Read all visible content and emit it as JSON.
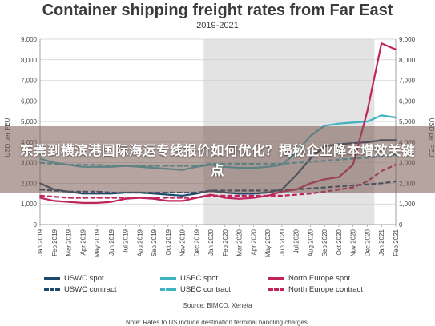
{
  "banner": {
    "text": "东莞到横滨港国际海运专线报价如何优化？揭秘企业降本增效关键点"
  },
  "chart_data": {
    "type": "line",
    "title": "Container shipping freight rates from Far East",
    "subtitle": "2019-2021",
    "ylabel": "USD per FEU",
    "ylim": [
      0,
      9000
    ],
    "yticks": [
      "0",
      "1,000",
      "2,000",
      "3,000",
      "4,000",
      "5,000",
      "6,000",
      "7,000",
      "8,000",
      "9,000"
    ],
    "x": [
      "Jan 2019",
      "Feb 2019",
      "Mar 2019",
      "Apr 2019",
      "May 2019",
      "Jun 2019",
      "Jul 2019",
      "Aug 2019",
      "Sep 2019",
      "Oct 2019",
      "Nov 2019",
      "Dec 2019",
      "Jan 2020",
      "Feb 2020",
      "Mar 2020",
      "Apr 2020",
      "May 2020",
      "Jun 2020",
      "Jul 2020",
      "Aug 2020",
      "Sep 2020",
      "Oct 2020",
      "Nov 2020",
      "Dec 2020",
      "Jan 2021",
      "Feb 2021"
    ],
    "shaded_region": [
      "Jan 2020",
      "Dec 2020"
    ],
    "colors": {
      "uswc": "#1e4a6e",
      "usec": "#3fb3c0",
      "north_europe": "#c0245c",
      "shade": "#e3e3e3"
    },
    "series": [
      {
        "name": "USWC spot",
        "style": "solid",
        "color_key": "uswc",
        "values": [
          2000,
          1700,
          1600,
          1500,
          1500,
          1500,
          1550,
          1550,
          1500,
          1450,
          1400,
          1500,
          1650,
          1550,
          1500,
          1500,
          1550,
          1700,
          2400,
          3200,
          3800,
          3900,
          3950,
          4000,
          4100,
          4100
        ]
      },
      {
        "name": "USWC contract",
        "style": "dashed",
        "color_key": "uswc",
        "values": [
          1700,
          1650,
          1600,
          1600,
          1600,
          1550,
          1550,
          1550,
          1550,
          1550,
          1550,
          1550,
          1650,
          1650,
          1650,
          1650,
          1650,
          1650,
          1700,
          1750,
          1800,
          1850,
          1900,
          1950,
          2000,
          2100
        ]
      },
      {
        "name": "USEC spot",
        "style": "solid",
        "color_key": "usec",
        "values": [
          3200,
          3000,
          2900,
          2800,
          2800,
          2800,
          2850,
          2800,
          2750,
          2700,
          2650,
          2800,
          2900,
          2800,
          2750,
          2750,
          2800,
          2900,
          3500,
          4300,
          4800,
          4900,
          4950,
          5000,
          5300,
          5200
        ]
      },
      {
        "name": "USEC contract",
        "style": "dashed",
        "color_key": "usec",
        "values": [
          3000,
          2950,
          2900,
          2900,
          2900,
          2850,
          2850,
          2850,
          2850,
          2850,
          2850,
          2850,
          2950,
          2950,
          2950,
          2950,
          2950,
          2950,
          3000,
          3050,
          3100,
          3150,
          3200,
          3250,
          3300,
          3400
        ]
      },
      {
        "name": "North Europe spot",
        "style": "solid",
        "color_key": "north_europe",
        "values": [
          1300,
          1150,
          1100,
          1050,
          1050,
          1100,
          1250,
          1300,
          1250,
          1150,
          1150,
          1300,
          1450,
          1300,
          1250,
          1300,
          1400,
          1600,
          1700,
          2000,
          2200,
          2300,
          2900,
          5500,
          8800,
          8500
        ]
      },
      {
        "name": "North Europe contract",
        "style": "dashed",
        "color_key": "north_europe",
        "values": [
          1400,
          1350,
          1300,
          1300,
          1300,
          1300,
          1300,
          1300,
          1300,
          1300,
          1300,
          1300,
          1400,
          1400,
          1400,
          1400,
          1400,
          1400,
          1450,
          1500,
          1600,
          1700,
          1800,
          2100,
          2600,
          2900
        ]
      }
    ]
  },
  "source": "Source: BIMCO, Xeneta",
  "note": "Note: Rates to US include destination terminal handling charges."
}
